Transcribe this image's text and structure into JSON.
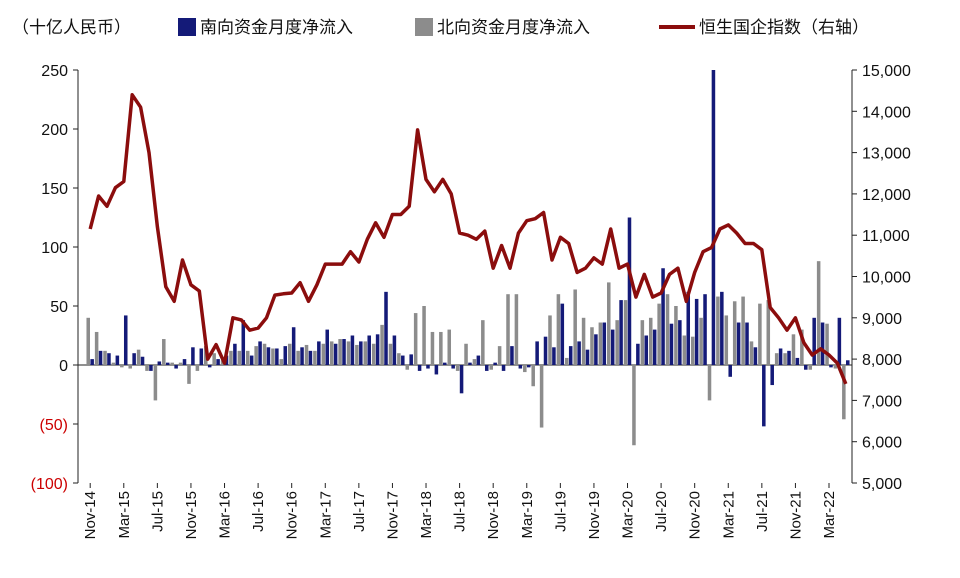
{
  "chart_data": {
    "type": "bar+line",
    "unit_label": "（十亿人民币）",
    "series": [
      {
        "name": "南向资金月度净流入",
        "type": "bar",
        "axis": "left",
        "color": "#141a78",
        "values": [
          5,
          12,
          10,
          8,
          42,
          10,
          7,
          -5,
          3,
          2,
          -3,
          5,
          15,
          14,
          -2,
          5,
          8,
          18,
          38,
          8,
          20,
          15,
          14,
          16,
          32,
          15,
          12,
          20,
          30,
          18,
          22,
          25,
          20,
          25,
          26,
          62,
          25,
          8,
          9,
          -5,
          -3,
          -8,
          2,
          -3,
          -24,
          2,
          8,
          -5,
          2,
          -5,
          16,
          -3,
          -2,
          20,
          24,
          15,
          52,
          16,
          20,
          13,
          26,
          36,
          30,
          55,
          125,
          18,
          25,
          30,
          82,
          35,
          38,
          62,
          56,
          60,
          250,
          62,
          -10,
          36,
          36,
          15,
          -52,
          -17,
          14,
          12,
          6,
          -4,
          40,
          36,
          -2,
          40,
          4
        ]
      },
      {
        "name": "北向资金月度净流入",
        "type": "bar",
        "axis": "right-offset",
        "color": "#8c8c8c",
        "values": [
          40,
          28,
          12,
          2,
          -2,
          -3,
          13,
          -5,
          -30,
          22,
          2,
          2,
          -16,
          -5,
          16,
          10,
          4,
          12,
          12,
          12,
          16,
          18,
          14,
          5,
          18,
          12,
          17,
          12,
          18,
          20,
          22,
          20,
          17,
          20,
          18,
          34,
          18,
          10,
          -4,
          44,
          50,
          28,
          28,
          30,
          -5,
          18,
          5,
          38,
          -4,
          16,
          60,
          60,
          -6,
          -18,
          -53,
          42,
          60,
          6,
          64,
          40,
          32,
          36,
          70,
          38,
          55,
          -68,
          38,
          40,
          52,
          60,
          50,
          25,
          24,
          40,
          -30,
          58,
          42,
          54,
          58,
          20,
          52,
          55,
          10,
          10,
          26,
          30,
          -4,
          88,
          35,
          -3,
          -46
        ]
      },
      {
        "name": "恒生国企指数（右轴）",
        "type": "line",
        "axis": "right",
        "color": "#8b0d0d",
        "values": [
          11150,
          11950,
          11700,
          12150,
          12300,
          14400,
          14100,
          13000,
          11200,
          9750,
          9400,
          10400,
          9800,
          9650,
          8000,
          8350,
          7900,
          9000,
          8950,
          8700,
          8750,
          9000,
          9550,
          9580,
          9600,
          9850,
          9400,
          9800,
          10300,
          10300,
          10300,
          10600,
          10350,
          10900,
          11300,
          10950,
          11500,
          11500,
          11700,
          13550,
          12350,
          12050,
          12350,
          12000,
          11050,
          11000,
          10900,
          11100,
          10200,
          10750,
          10200,
          11050,
          11350,
          11400,
          11550,
          10400,
          10950,
          10800,
          10100,
          10200,
          10450,
          10300,
          11150,
          10200,
          10300,
          9500,
          10050,
          9500,
          9600,
          10050,
          10200,
          9400,
          10100,
          10600,
          10700,
          11150,
          11250,
          11050,
          10800,
          10800,
          10650,
          9250,
          9000,
          8700,
          9000,
          8400,
          8100,
          8250,
          8100,
          7900,
          7400
        ]
      }
    ],
    "left_axis": {
      "min": -100,
      "max": 250,
      "ticks": [
        "250",
        "200",
        "150",
        "100",
        "50",
        "0",
        "(50)",
        "(100)"
      ]
    },
    "right_axis": {
      "min": 5000,
      "max": 15000,
      "ticks": [
        "15,000",
        "14,000",
        "13,000",
        "12,000",
        "11,000",
        "10,000",
        "9,000",
        "8,000",
        "7,000",
        "6,000",
        "5,000"
      ]
    },
    "x_tick_labels": [
      "Nov-14",
      "Mar-15",
      "Jul-15",
      "Nov-15",
      "Mar-16",
      "Jul-16",
      "Nov-16",
      "Mar-17",
      "Jul-17",
      "Nov-17",
      "Mar-18",
      "Jul-18",
      "Nov-18",
      "Mar-19",
      "Jul-19",
      "Nov-19",
      "Mar-20",
      "Jul-20",
      "Nov-20",
      "Mar-21",
      "Jul-21",
      "Nov-21",
      "Mar-22"
    ],
    "legend_position": "top",
    "grid": false
  }
}
